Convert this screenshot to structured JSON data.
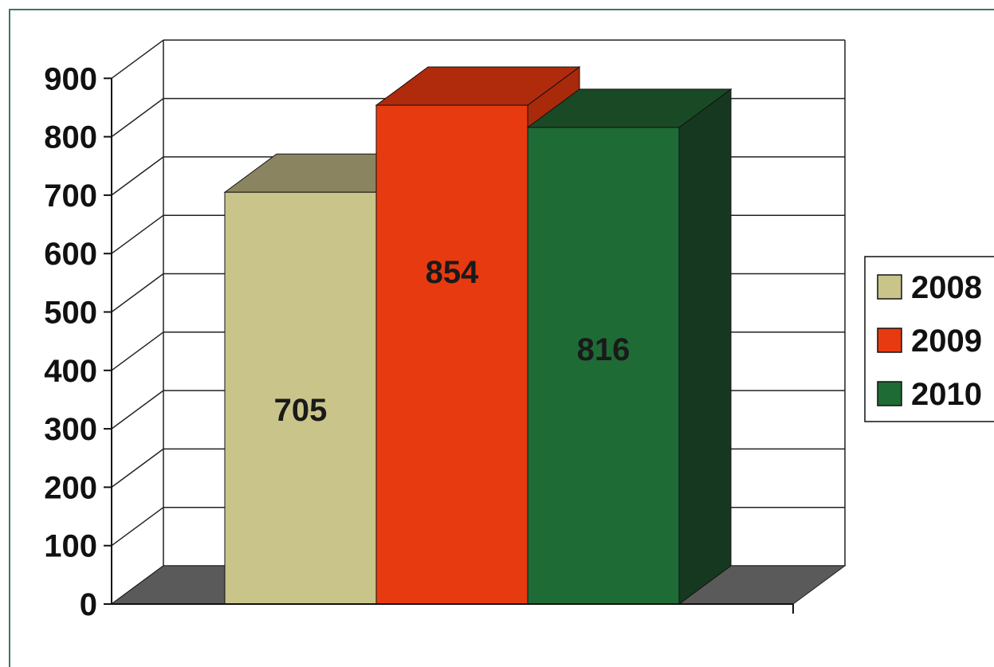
{
  "chart_data": {
    "type": "bar",
    "categories": [
      "2008",
      "2009",
      "2010"
    ],
    "values": [
      705,
      854,
      816
    ],
    "data_labels": [
      "705",
      "854",
      "816"
    ],
    "series": [
      {
        "name": "2008",
        "value": 705,
        "color": "#c9c48a"
      },
      {
        "name": "2009",
        "value": 854,
        "color": "#e83a10"
      },
      {
        "name": "2010",
        "value": 816,
        "color": "#1f6b35"
      }
    ],
    "ylim": [
      0,
      900
    ],
    "yticks": [
      "0",
      "100",
      "200",
      "300",
      "400",
      "500",
      "600",
      "700",
      "800",
      "900"
    ],
    "title": "",
    "xlabel": "",
    "ylabel": "",
    "grid": true,
    "legend_position": "right",
    "style": "3d-column"
  },
  "colors": {
    "frame_border": "#3a7a5a",
    "floor": "#5a5a5a",
    "grid": "#222222",
    "bar_2008_front": "#c9c48a",
    "bar_2008_top": "#8a8560",
    "bar_2009_front": "#e83a10",
    "bar_2009_top": "#b02a0c",
    "bar_2009_side": "#a82a0a",
    "bar_2010_front": "#1f6b35",
    "bar_2010_top": "#1a4a25",
    "bar_2010_side": "#163820"
  }
}
